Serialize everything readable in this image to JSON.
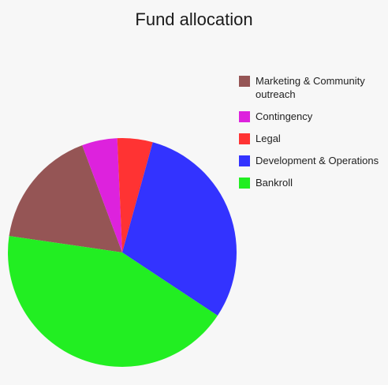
{
  "chart_data": {
    "type": "pie",
    "title": "Fund allocation",
    "slices": [
      {
        "label": "Marketing & Community outreach",
        "value": 17,
        "color": "#955555"
      },
      {
        "label": "Contingency",
        "value": 5,
        "color": "#dd22dd"
      },
      {
        "label": "Legal",
        "value": 5,
        "color": "#ff3333"
      },
      {
        "label": "Development & Operations",
        "value": 30,
        "color": "#3333ff"
      },
      {
        "label": "Bankroll",
        "value": 43,
        "color": "#22ee22"
      }
    ],
    "legend_placement": "right"
  }
}
